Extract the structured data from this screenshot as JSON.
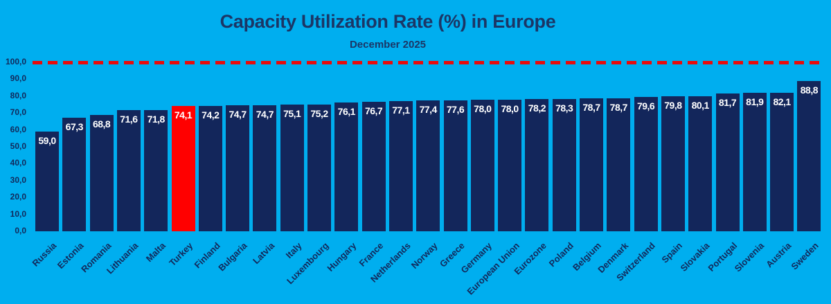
{
  "title": "Capacity Utilization Rate (%) in Europe",
  "subtitle": "December 2025",
  "chart_data": {
    "type": "bar",
    "title": "Capacity Utilization Rate (%) in Europe",
    "subtitle": "December 2025",
    "categories": [
      "Russia",
      "Estonia",
      "Romania",
      "Lithuania",
      "Malta",
      "Turkey",
      "Finland",
      "Bulgaria",
      "Latvia",
      "Italy",
      "Luxembourg",
      "Hungary",
      "France",
      "Netherlands",
      "Norway",
      "Greece",
      "Germany",
      "European Union",
      "Eurozone",
      "Poland",
      "Belgium",
      "Denmark",
      "Switzerland",
      "Spain",
      "Slovakia",
      "Portugal",
      "Slovenia",
      "Austria",
      "Sweden"
    ],
    "values": [
      59.0,
      67.3,
      68.8,
      71.6,
      71.8,
      74.1,
      74.2,
      74.7,
      74.7,
      75.1,
      75.2,
      76.1,
      76.7,
      77.1,
      77.4,
      77.6,
      78.0,
      78.0,
      78.2,
      78.3,
      78.7,
      78.7,
      79.6,
      79.8,
      80.1,
      81.7,
      81.9,
      82.1,
      88.8
    ],
    "value_labels": [
      "59,0",
      "67,3",
      "68,8",
      "71,6",
      "71,8",
      "74,1",
      "74,2",
      "74,7",
      "74,7",
      "75,1",
      "75,2",
      "76,1",
      "76,7",
      "77,1",
      "77,4",
      "77,6",
      "78,0",
      "78,0",
      "78,2",
      "78,3",
      "78,7",
      "78,7",
      "79,6",
      "79,8",
      "80,1",
      "81,7",
      "81,9",
      "82,1",
      "88,8"
    ],
    "highlight_category": "Turkey",
    "y_tick_labels": [
      "100,0",
      "90,0",
      "80,0",
      "70,0",
      "60,0",
      "50,0",
      "40,0",
      "30,0",
      "20,0",
      "10,0",
      "0,0"
    ],
    "y_tick_values": [
      100,
      90,
      80,
      70,
      60,
      50,
      40,
      30,
      20,
      10,
      0
    ],
    "ylim": [
      0,
      100
    ],
    "xlabel": "",
    "ylabel": "",
    "grid": false,
    "legend": "none",
    "reference_line": {
      "value": 100.0,
      "style": "dashed"
    },
    "colors": {
      "background": "#00AEEF",
      "bar": "#13265B",
      "highlight_bar": "#FF0000",
      "reference_line": "#E90B0B",
      "value_label": "#FFFFFF",
      "axis_text": "#12295B",
      "title_text": "#1B3666"
    }
  }
}
